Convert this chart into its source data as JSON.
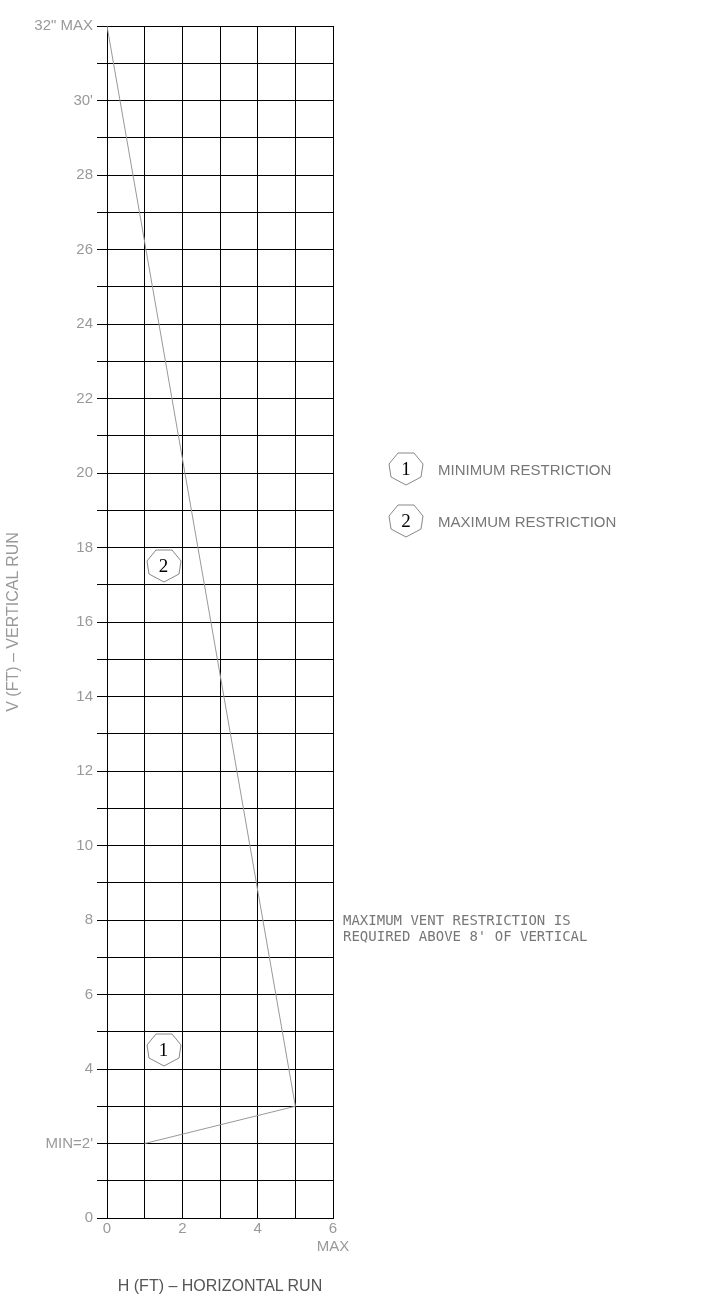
{
  "chart_data": {
    "type": "line",
    "xlabel": "H (FT) – HORIZONTAL RUN",
    "ylabel": "V (FT) – VERTICAL RUN",
    "series": [
      {
        "color": "#999999",
        "x": [
          1,
          5,
          0
        ],
        "values": [
          2,
          3,
          32
        ]
      }
    ],
    "xlim": [
      0,
      6
    ],
    "xticks": [
      0,
      {
        "value": 1,
        "label": null
      },
      2,
      {
        "value": 3,
        "label": null
      },
      4,
      {
        "value": 5,
        "label": null
      },
      {
        "value": 6,
        "label": "6\nMAX"
      }
    ],
    "ylim": [
      0,
      32
    ],
    "yticks": [
      0,
      {
        "value": 1,
        "label": null
      },
      {
        "value": 2,
        "label": "MIN=2'"
      },
      {
        "value": 3,
        "label": null
      },
      4,
      {
        "value": 5,
        "label": null
      },
      6,
      {
        "value": 7,
        "label": null
      },
      8,
      {
        "value": 9,
        "label": null
      },
      10,
      {
        "value": 11,
        "label": null
      },
      12,
      {
        "value": 13,
        "label": null
      },
      14,
      {
        "value": 15,
        "label": null
      },
      16,
      {
        "value": 17,
        "label": null
      },
      18,
      {
        "value": 19,
        "label": null
      },
      20,
      {
        "value": 21,
        "label": null
      },
      22,
      {
        "value": 23,
        "label": null
      },
      24,
      {
        "value": 25,
        "label": null
      },
      26,
      {
        "value": 27,
        "label": null
      },
      28,
      {
        "value": 29,
        "label": null
      },
      {
        "value": 30,
        "label": "30'"
      },
      {
        "value": 31,
        "label": null
      },
      {
        "value": 32,
        "label": "32\" MAX"
      }
    ],
    "grid": true,
    "legend": false,
    "marker": "none",
    "line_style": "solid",
    "annotations": [
      {
        "text": "1",
        "x": 1.5,
        "y": 4.5
      },
      {
        "text": "2",
        "x": 1.5,
        "y": 17.5
      },
      "1 MINIMUM RESTRICTION",
      "2 MAXIMUM RESTRICTION",
      "MAXIMUM VENT RESTRICTION IS REQUIRED ABOVE 8' OF VERTICAL"
    ]
  }
}
